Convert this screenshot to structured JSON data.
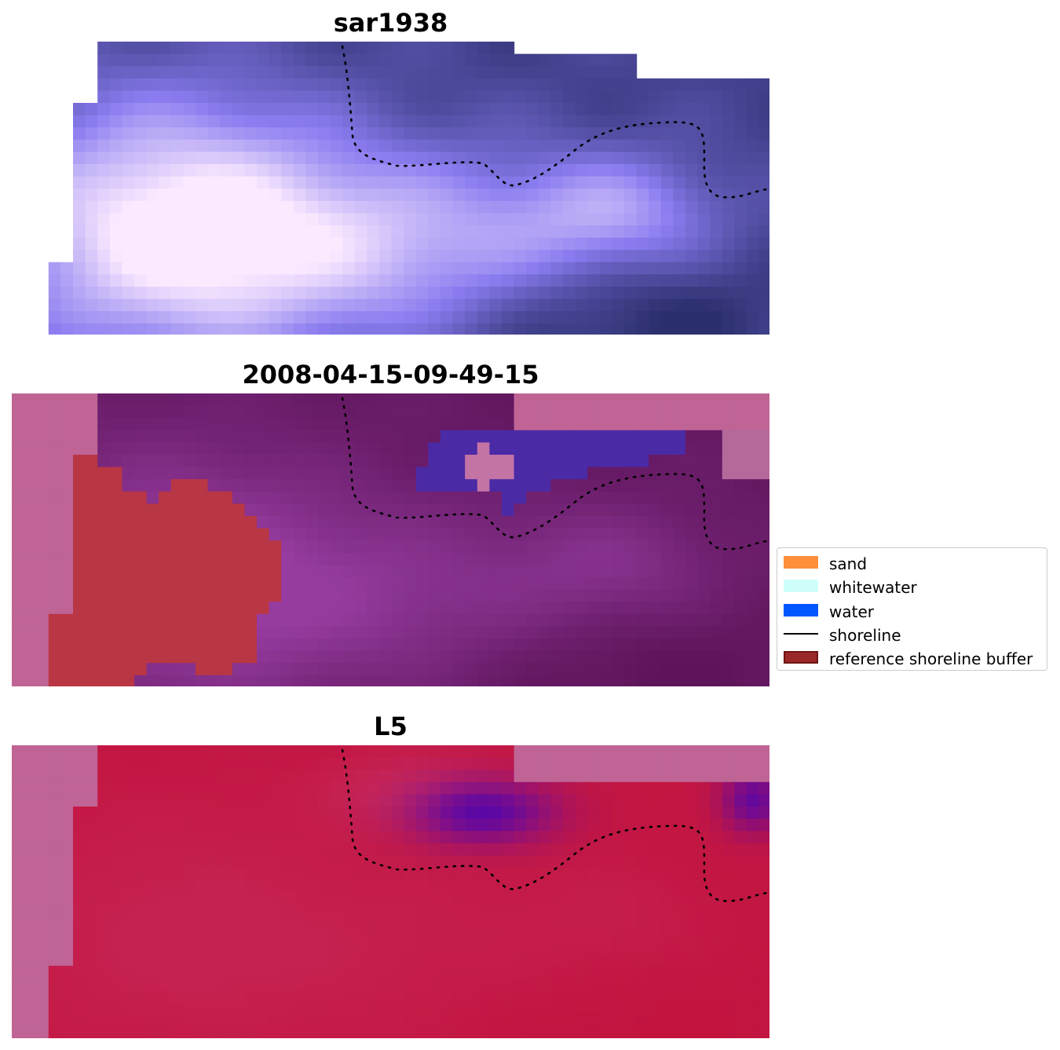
{
  "panels": [
    {
      "title": "sar1938",
      "kind": "sar"
    },
    {
      "title": "2008-04-15-09-49-15",
      "kind": "classified"
    },
    {
      "title": "L5",
      "kind": "l5"
    }
  ],
  "legend": {
    "items": [
      {
        "label": "sand",
        "color": "#ff8f3a",
        "kind": "patch"
      },
      {
        "label": "whitewater",
        "color": "#cffffb",
        "kind": "patch"
      },
      {
        "label": "water",
        "color": "#0057ff",
        "kind": "patch"
      },
      {
        "label": "shoreline",
        "color": "#000000",
        "kind": "line"
      },
      {
        "label": "reference shoreline buffer",
        "color": "#9b2828",
        "kind": "patch-edged"
      }
    ]
  },
  "colors": {
    "sar_light": "#fbeaff",
    "sar_mid": "#8a7cf0",
    "sar_dark": "#2c2f6e",
    "nodata_pink": "#bf6495",
    "buffer_red": "#b93644",
    "purple_class": "#6f2283",
    "water_class": "#4b2aa6",
    "l5_red": "#c2143f",
    "l5_purple": "#5b07a6"
  }
}
